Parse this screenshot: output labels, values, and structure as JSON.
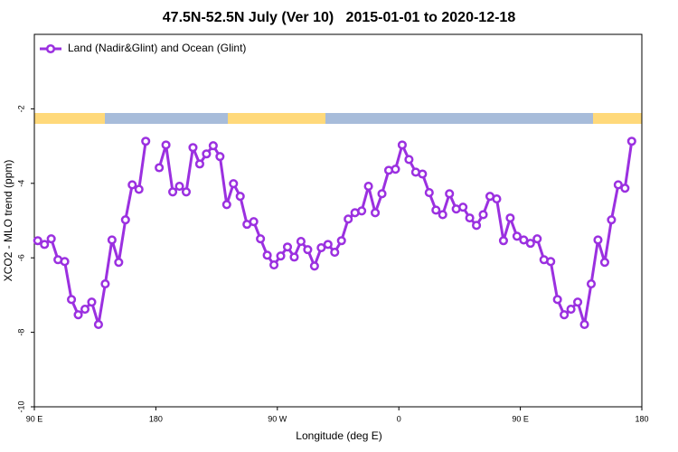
{
  "chart_data": {
    "type": "line",
    "title": "47.5N-52.5N July (Ver 10)   2015-01-01 to 2020-12-18",
    "xlabel": "Longitude (deg E)",
    "ylabel": "XCO2 - MLO trend (ppm)",
    "xlim": [
      90,
      540
    ],
    "xticks": [
      {
        "value": 90,
        "label": "90 E"
      },
      180,
      {
        "value": 270,
        "label": "90 W"
      },
      {
        "value": 360,
        "label": "0"
      },
      {
        "value": 450,
        "label": "90 E"
      },
      {
        "value": 540,
        "label": "180"
      }
    ],
    "ylim": [
      -10,
      0
    ],
    "yticks": [
      -10,
      -8,
      -6,
      -4,
      -2
    ],
    "legend": "top-left",
    "x": [
      92.5,
      97.5,
      102.5,
      107.5,
      112.5,
      117.5,
      122.5,
      127.5,
      132.5,
      137.5,
      142.5,
      147.5,
      152.5,
      157.5,
      162.5,
      167.5,
      172.5,
      177.5,
      182.5,
      187.5,
      192.5,
      197.5,
      202.5,
      207.5,
      212.5,
      217.5,
      222.5,
      227.5,
      232.5,
      237.5,
      242.5,
      247.5,
      252.5,
      257.5,
      262.5,
      267.5,
      272.5,
      277.5,
      282.5,
      287.5,
      292.5,
      297.5,
      302.5,
      307.5,
      312.5,
      317.5,
      322.5,
      327.5,
      332.5,
      337.5,
      342.5,
      347.5,
      352.5,
      357.5,
      362.5,
      367.5,
      372.5,
      377.5,
      382.5,
      387.5,
      392.5,
      397.5,
      402.5,
      407.5,
      412.5,
      417.5,
      422.5,
      427.5,
      432.5,
      437.5,
      442.5,
      447.5,
      452.5,
      457.5,
      462.5,
      467.5,
      472.5,
      477.5,
      482.5,
      487.5,
      492.5,
      497.5,
      502.5,
      507.5,
      512.5,
      517.5,
      522.5,
      527.5,
      532.5
    ],
    "series": [
      {
        "name": "Land (Nadir&Glint) and Ocean (Glint)",
        "color": "#9b30e0",
        "values": [
          -5.54,
          -5.64,
          -5.49,
          -6.05,
          -6.1,
          -7.12,
          -7.53,
          -7.38,
          -7.19,
          -7.79,
          -6.7,
          -5.52,
          -6.12,
          -4.98,
          -4.04,
          -4.16,
          -2.87,
          null,
          -3.58,
          -2.97,
          -4.23,
          -4.08,
          -4.23,
          -3.04,
          -3.48,
          -3.21,
          -2.99,
          -3.28,
          -4.57,
          -4.01,
          -4.35,
          -5.1,
          -5.03,
          -5.49,
          -5.93,
          -6.19,
          -5.95,
          -5.71,
          -5.98,
          -5.56,
          -5.78,
          -6.22,
          -5.73,
          -5.64,
          -5.85,
          -5.54,
          -4.96,
          -4.79,
          -4.74,
          -4.08,
          -4.79,
          -4.28,
          -3.65,
          -3.62,
          -2.97,
          -3.36,
          -3.7,
          -3.75,
          -4.25,
          -4.72,
          -4.84,
          -4.28,
          -4.69,
          -4.64,
          -4.93,
          -5.13,
          -4.84,
          -4.35,
          -4.42,
          -5.54,
          -4.93,
          -5.42,
          -5.52,
          -5.61,
          -5.49,
          -6.05,
          -6.1,
          -7.12,
          -7.53,
          -7.38,
          -7.19,
          -7.79,
          -6.7,
          -5.52,
          -6.12,
          -4.98,
          -4.04,
          -4.13,
          -2.87
        ]
      }
    ]
  }
}
